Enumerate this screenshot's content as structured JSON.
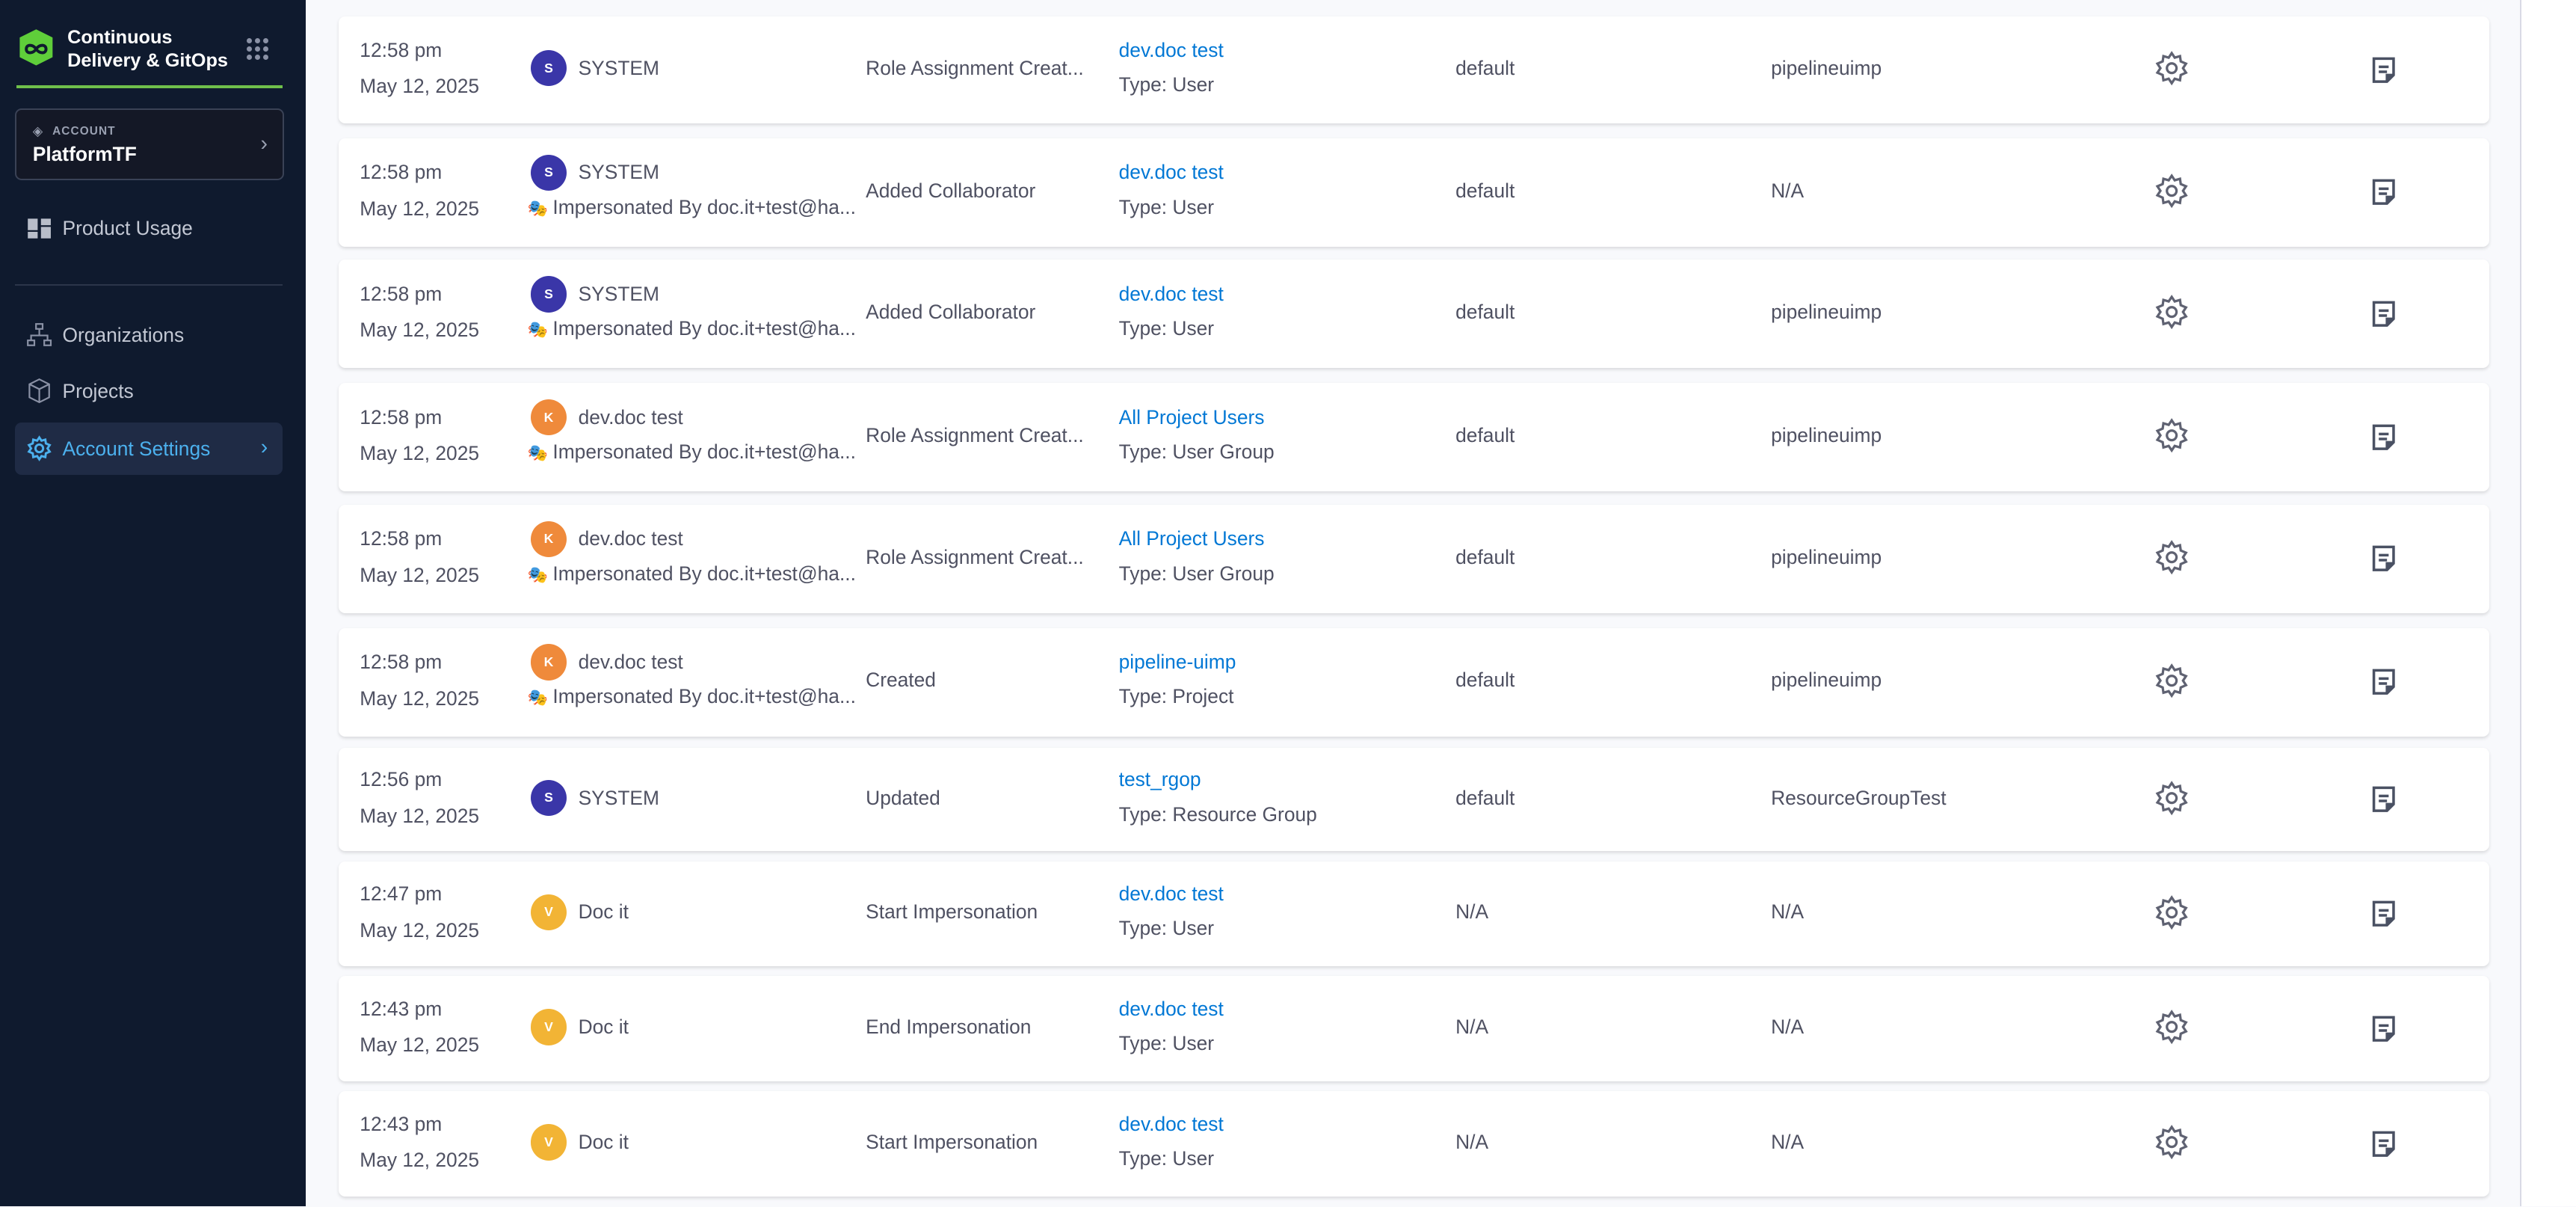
{
  "sidebar": {
    "brand": "Continuous Delivery & GitOps",
    "account_label": "ACCOUNT",
    "account_name": "PlatformTF",
    "items": [
      {
        "label": "Product Usage",
        "icon": "dashboard-icon"
      },
      {
        "label": "Organizations",
        "icon": "org-hierarchy-icon"
      },
      {
        "label": "Projects",
        "icon": "cube-icon"
      },
      {
        "label": "Account Settings",
        "icon": "gear-icon",
        "active": true
      }
    ]
  },
  "colors": {
    "sidebar_bg": "#0f1a2e",
    "accent": "#4cb1ee",
    "link": "#0278d5",
    "system_avatar": "#3a36a8",
    "k_avatar": "#ef8a3b",
    "v_avatar": "#f2b435"
  },
  "rows": [
    {
      "time": "12:58 pm",
      "date": "May 12, 2025",
      "initial": "S",
      "user": "SYSTEM",
      "impersonated": "",
      "action": "Role Assignment Creat...",
      "resource": "dev.doc test",
      "type": "Type: User",
      "org": "default",
      "project": "pipelineuimp"
    },
    {
      "time": "12:58 pm",
      "date": "May 12, 2025",
      "initial": "S",
      "user": "SYSTEM",
      "impersonated": "Impersonated By doc.it+test@ha...",
      "action": "Added Collaborator",
      "resource": "dev.doc test",
      "type": "Type: User",
      "org": "default",
      "project": "N/A"
    },
    {
      "time": "12:58 pm",
      "date": "May 12, 2025",
      "initial": "S",
      "user": "SYSTEM",
      "impersonated": "Impersonated By doc.it+test@ha...",
      "action": "Added Collaborator",
      "resource": "dev.doc test",
      "type": "Type: User",
      "org": "default",
      "project": "pipelineuimp"
    },
    {
      "time": "12:58 pm",
      "date": "May 12, 2025",
      "initial": "K",
      "user": "dev.doc test",
      "impersonated": "Impersonated By doc.it+test@ha...",
      "action": "Role Assignment Creat...",
      "resource": "All Project Users",
      "type": "Type: User Group",
      "org": "default",
      "project": "pipelineuimp"
    },
    {
      "time": "12:58 pm",
      "date": "May 12, 2025",
      "initial": "K",
      "user": "dev.doc test",
      "impersonated": "Impersonated By doc.it+test@ha...",
      "action": "Role Assignment Creat...",
      "resource": "All Project Users",
      "type": "Type: User Group",
      "org": "default",
      "project": "pipelineuimp"
    },
    {
      "time": "12:58 pm",
      "date": "May 12, 2025",
      "initial": "K",
      "user": "dev.doc test",
      "impersonated": "Impersonated By doc.it+test@ha...",
      "action": "Created",
      "resource": "pipeline-uimp",
      "type": "Type: Project",
      "org": "default",
      "project": "pipelineuimp"
    },
    {
      "time": "12:56 pm",
      "date": "May 12, 2025",
      "initial": "S",
      "user": "SYSTEM",
      "impersonated": "",
      "action": "Updated",
      "resource": "test_rgop",
      "type": "Type: Resource Group",
      "org": "default",
      "project": "ResourceGroupTest"
    },
    {
      "time": "12:47 pm",
      "date": "May 12, 2025",
      "initial": "V",
      "user": "Doc it",
      "impersonated": "",
      "action": "Start Impersonation",
      "resource": "dev.doc test",
      "type": "Type: User",
      "org": "N/A",
      "project": "N/A"
    },
    {
      "time": "12:43 pm",
      "date": "May 12, 2025",
      "initial": "V",
      "user": "Doc it",
      "impersonated": "",
      "action": "End Impersonation",
      "resource": "dev.doc test",
      "type": "Type: User",
      "org": "N/A",
      "project": "N/A"
    },
    {
      "time": "12:43 pm",
      "date": "May 12, 2025",
      "initial": "V",
      "user": "Doc it",
      "impersonated": "",
      "action": "Start Impersonation",
      "resource": "dev.doc test",
      "type": "Type: User",
      "org": "N/A",
      "project": "N/A"
    }
  ]
}
